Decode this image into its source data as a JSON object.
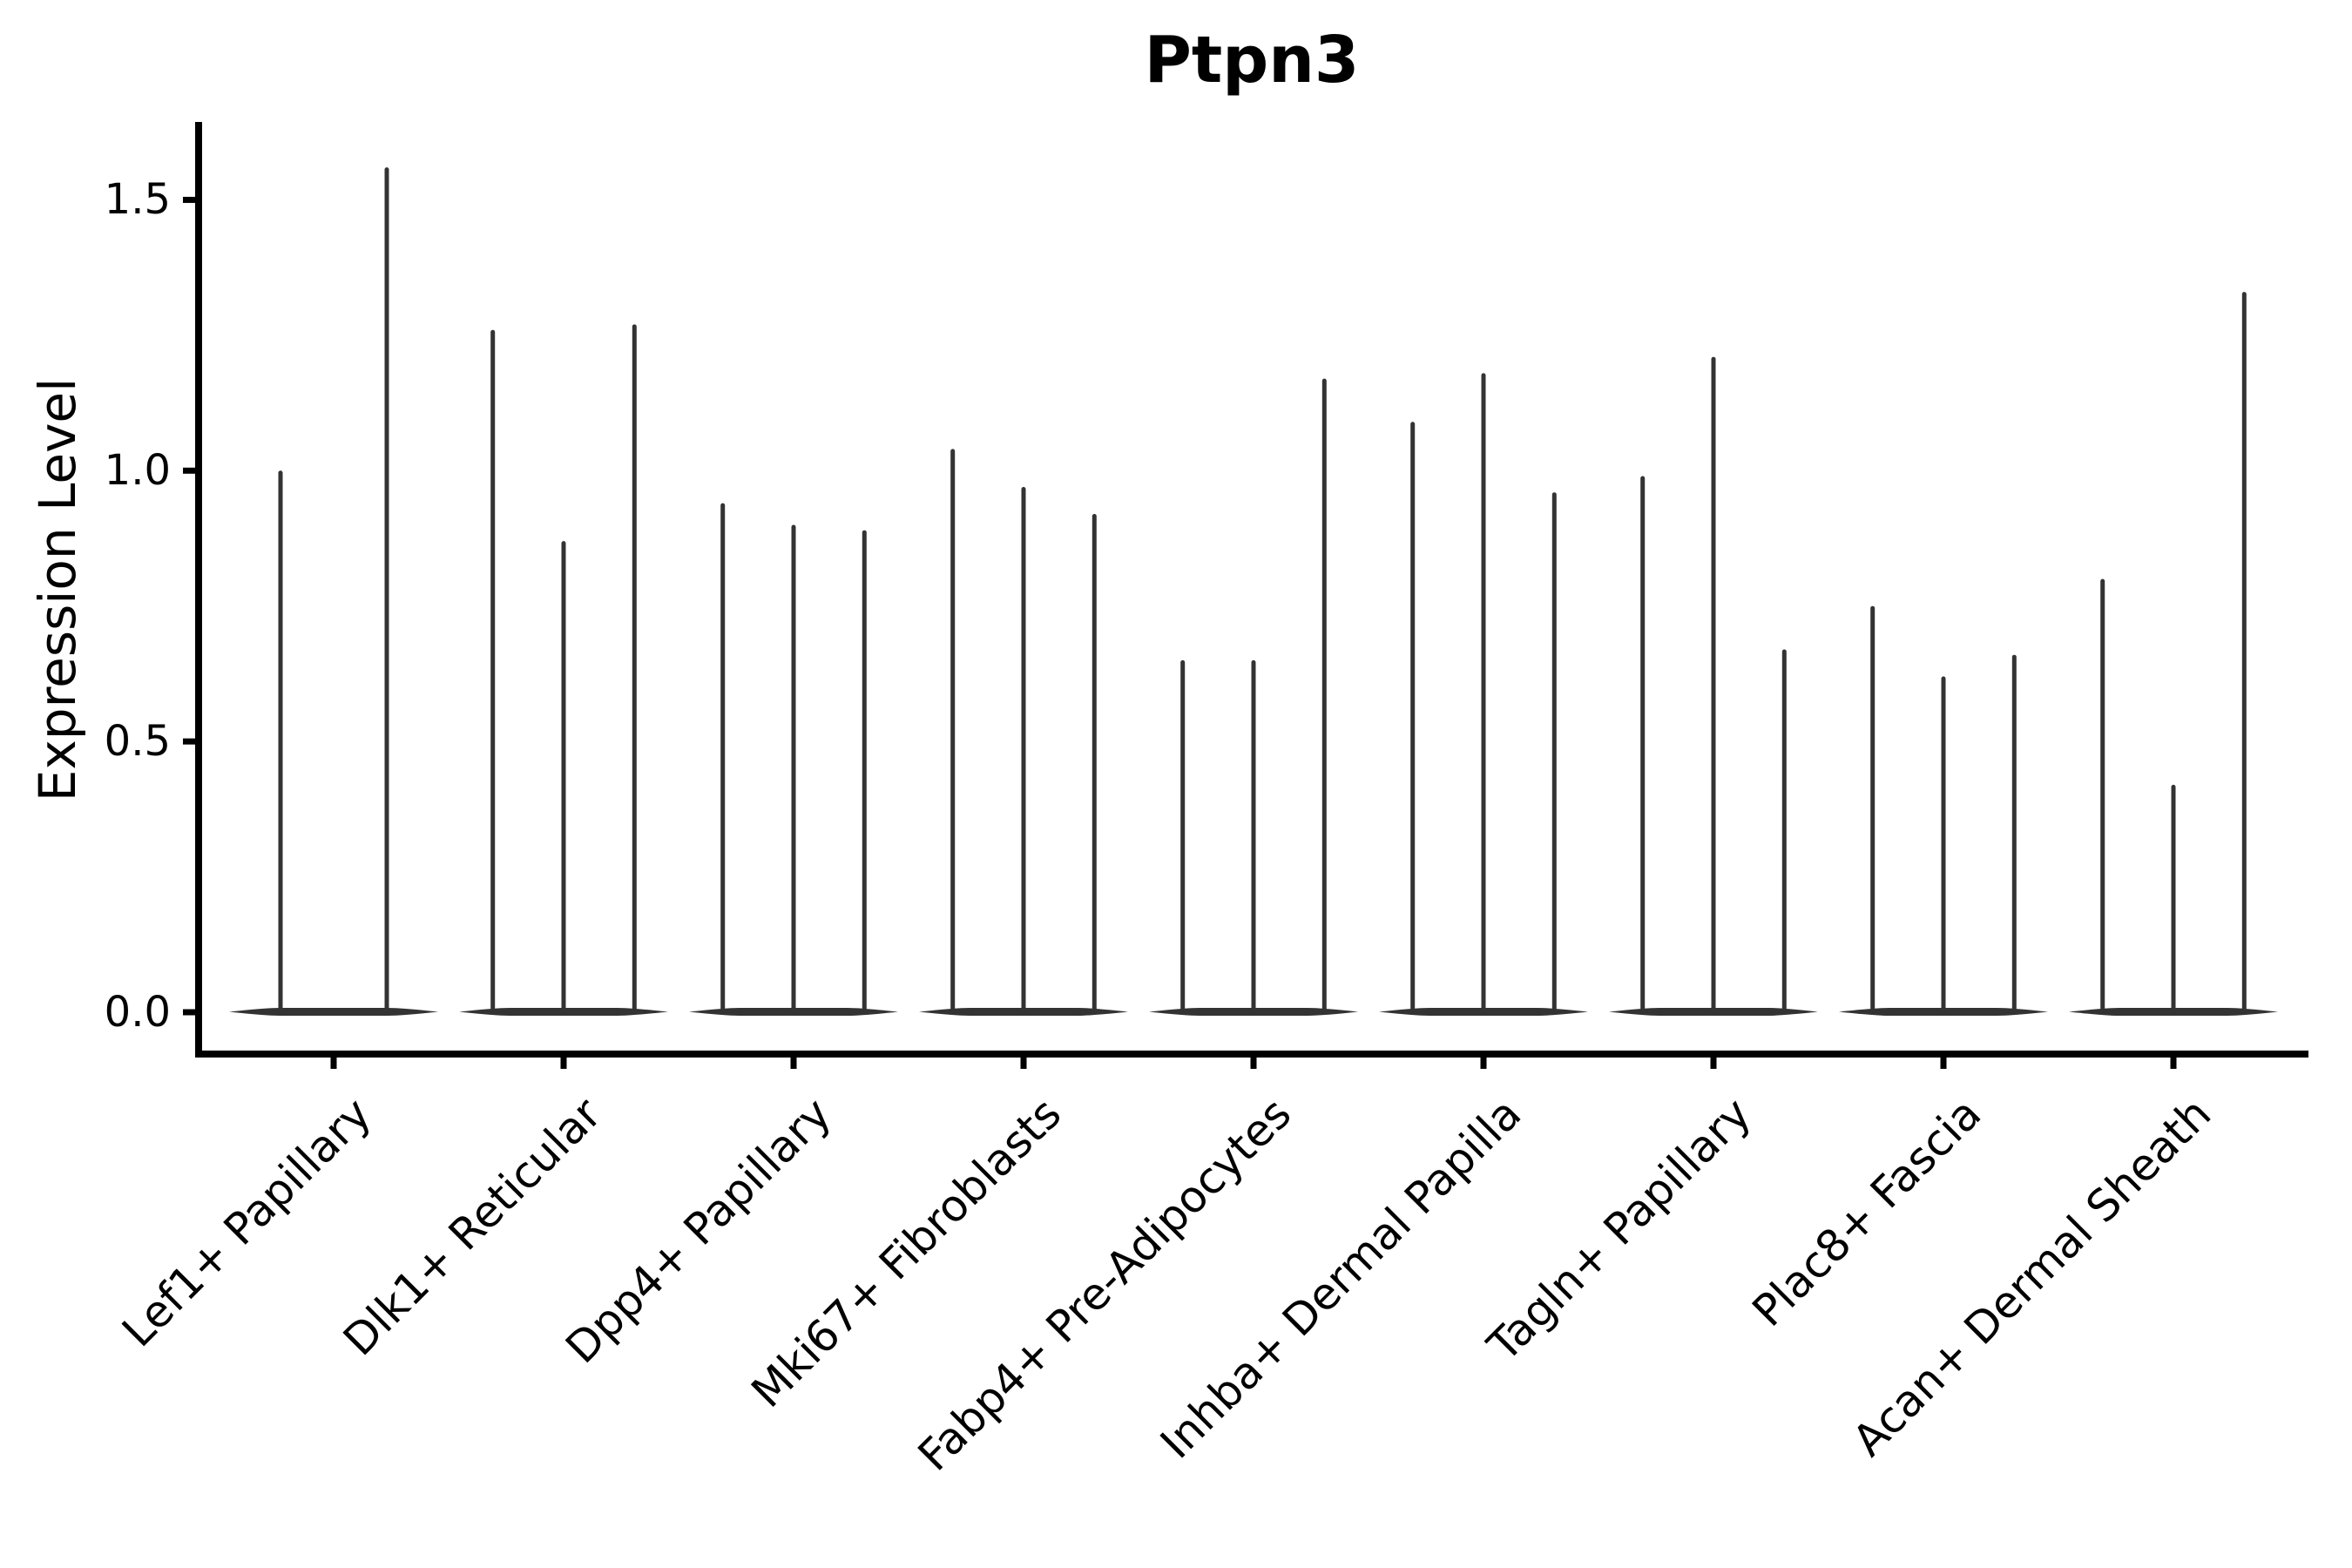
{
  "title": "Ptpn3",
  "axes": {
    "ylabel": "Expression Level",
    "ytick_labels": [
      "0.0",
      "0.5",
      "1.0",
      "1.5"
    ]
  },
  "chart_data": {
    "type": "violin",
    "title": "Ptpn3",
    "xlabel": "",
    "ylabel": "Expression Level",
    "ylim": [
      -0.08,
      1.64
    ],
    "yticks": [
      0.0,
      0.5,
      1.0,
      1.5
    ],
    "grid": false,
    "legend": null,
    "violin_color": "#333333",
    "axis_color": "#000000",
    "background_color": "#ffffff",
    "categories": [
      "Lef1+ Papillary",
      "Dlk1+ Reticular",
      "Dpp4+ Papillary",
      "Mki67+ Fibroblasts",
      "Fabp4+ Pre-Adipocytes",
      "Inhba+ Dermal Papilla",
      "Tagln+ Papillary",
      "Plac8+ Fascia",
      "Acan+ Dermal Sheath"
    ],
    "groups": [
      {
        "category": "Lef1+ Papillary",
        "violin_peaks": [
          1.0,
          1.56
        ]
      },
      {
        "category": "Dlk1+ Reticular",
        "violin_peaks": [
          1.26,
          0.87,
          1.27
        ]
      },
      {
        "category": "Dpp4+ Papillary",
        "violin_peaks": [
          0.94,
          0.9,
          0.89
        ]
      },
      {
        "category": "Mki67+ Fibroblasts",
        "violin_peaks": [
          1.04,
          0.97,
          0.92
        ]
      },
      {
        "category": "Fabp4+ Pre-Adipocytes",
        "violin_peaks": [
          0.65,
          0.65,
          1.17
        ]
      },
      {
        "category": "Inhba+ Dermal Papilla",
        "violin_peaks": [
          1.09,
          1.18,
          0.96
        ]
      },
      {
        "category": "Tagln+ Papillary",
        "violin_peaks": [
          0.99,
          1.21,
          0.67
        ]
      },
      {
        "category": "Plac8+ Fascia",
        "violin_peaks": [
          0.75,
          0.62,
          0.66
        ]
      },
      {
        "category": "Acan+ Dermal Sheath",
        "violin_peaks": [
          0.8,
          0.42,
          1.33
        ]
      }
    ]
  }
}
